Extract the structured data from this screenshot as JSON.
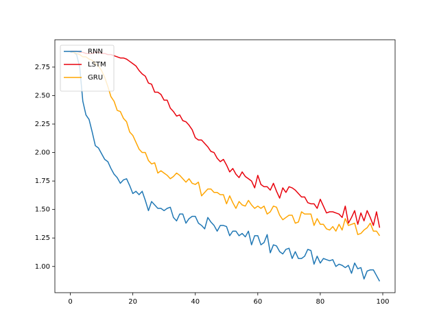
{
  "chart_data": {
    "type": "line",
    "x": [
      0,
      1,
      2,
      3,
      4,
      5,
      6,
      7,
      8,
      9,
      10,
      11,
      12,
      13,
      14,
      15,
      16,
      17,
      18,
      19,
      20,
      21,
      22,
      23,
      24,
      25,
      26,
      27,
      28,
      29,
      30,
      31,
      32,
      33,
      34,
      35,
      36,
      37,
      38,
      39,
      40,
      41,
      42,
      43,
      44,
      45,
      46,
      47,
      48,
      49,
      50,
      51,
      52,
      53,
      54,
      55,
      56,
      57,
      58,
      59,
      60,
      61,
      62,
      63,
      64,
      65,
      66,
      67,
      68,
      69,
      70,
      71,
      72,
      73,
      74,
      75,
      76,
      77,
      78,
      79,
      80,
      81,
      82,
      83,
      84,
      85,
      86,
      87,
      88,
      89,
      90,
      91,
      92,
      93,
      94,
      95,
      96,
      97,
      98,
      99
    ],
    "series": [
      {
        "name": "RNN",
        "color": "#1f77b4",
        "values": [
          2.88,
          2.88,
          2.86,
          2.75,
          2.45,
          2.33,
          2.29,
          2.18,
          2.06,
          2.04,
          1.99,
          1.94,
          1.92,
          1.86,
          1.81,
          1.78,
          1.73,
          1.76,
          1.77,
          1.71,
          1.64,
          1.66,
          1.63,
          1.66,
          1.58,
          1.49,
          1.57,
          1.54,
          1.51,
          1.51,
          1.49,
          1.51,
          1.52,
          1.43,
          1.4,
          1.46,
          1.46,
          1.38,
          1.42,
          1.44,
          1.44,
          1.38,
          1.36,
          1.33,
          1.43,
          1.39,
          1.36,
          1.31,
          1.36,
          1.36,
          1.35,
          1.27,
          1.31,
          1.31,
          1.27,
          1.29,
          1.26,
          1.31,
          1.19,
          1.27,
          1.27,
          1.19,
          1.21,
          1.28,
          1.12,
          1.19,
          1.18,
          1.13,
          1.11,
          1.15,
          1.16,
          1.07,
          1.13,
          1.07,
          1.07,
          1.09,
          1.15,
          1.14,
          1.02,
          1.09,
          1.03,
          1.07,
          1.06,
          1.05,
          1.06,
          1.0,
          1.02,
          1.01,
          0.99,
          1.01,
          0.94,
          1.03,
          0.98,
          0.99,
          0.89,
          0.96,
          0.97,
          0.97,
          0.92,
          0.87
        ]
      },
      {
        "name": "LSTM",
        "color": "#e8000b",
        "values": [
          2.89,
          2.89,
          2.89,
          2.88,
          2.88,
          2.87,
          2.87,
          2.87,
          2.88,
          2.88,
          2.87,
          2.87,
          2.86,
          2.86,
          2.85,
          2.84,
          2.83,
          2.83,
          2.82,
          2.8,
          2.78,
          2.76,
          2.72,
          2.69,
          2.67,
          2.61,
          2.6,
          2.53,
          2.53,
          2.51,
          2.46,
          2.46,
          2.39,
          2.36,
          2.32,
          2.33,
          2.28,
          2.27,
          2.24,
          2.2,
          2.13,
          2.11,
          2.11,
          2.08,
          2.05,
          2.01,
          2.0,
          1.95,
          1.92,
          1.94,
          1.89,
          1.83,
          1.86,
          1.81,
          1.78,
          1.83,
          1.79,
          1.77,
          1.75,
          1.69,
          1.8,
          1.72,
          1.7,
          1.7,
          1.67,
          1.73,
          1.66,
          1.6,
          1.69,
          1.65,
          1.7,
          1.69,
          1.67,
          1.64,
          1.61,
          1.61,
          1.56,
          1.55,
          1.55,
          1.51,
          1.59,
          1.53,
          1.47,
          1.48,
          1.48,
          1.47,
          1.46,
          1.43,
          1.53,
          1.38,
          1.43,
          1.49,
          1.37,
          1.47,
          1.4,
          1.49,
          1.43,
          1.36,
          1.48,
          1.34
        ]
      },
      {
        "name": "GRU",
        "color": "#ffa500",
        "values": [
          2.89,
          2.88,
          2.87,
          2.86,
          2.84,
          2.84,
          2.82,
          2.81,
          2.78,
          2.76,
          2.72,
          2.66,
          2.58,
          2.49,
          2.45,
          2.37,
          2.36,
          2.3,
          2.27,
          2.18,
          2.15,
          2.09,
          2.03,
          2.0,
          2.0,
          1.93,
          1.9,
          1.91,
          1.82,
          1.84,
          1.82,
          1.8,
          1.77,
          1.79,
          1.82,
          1.8,
          1.77,
          1.74,
          1.77,
          1.73,
          1.72,
          1.74,
          1.62,
          1.65,
          1.68,
          1.68,
          1.65,
          1.65,
          1.63,
          1.63,
          1.55,
          1.62,
          1.56,
          1.51,
          1.57,
          1.54,
          1.53,
          1.58,
          1.54,
          1.51,
          1.53,
          1.51,
          1.53,
          1.46,
          1.48,
          1.53,
          1.52,
          1.45,
          1.41,
          1.43,
          1.45,
          1.45,
          1.38,
          1.39,
          1.48,
          1.46,
          1.46,
          1.46,
          1.36,
          1.42,
          1.37,
          1.37,
          1.33,
          1.32,
          1.35,
          1.31,
          1.37,
          1.32,
          1.42,
          1.36,
          1.37,
          1.38,
          1.28,
          1.29,
          1.32,
          1.34,
          1.38,
          1.31,
          1.31,
          1.27
        ]
      }
    ],
    "xlim": [
      -4.95,
      103.95
    ],
    "ylim": [
      0.77,
      2.99
    ],
    "xticks": [
      0,
      20,
      40,
      60,
      80,
      100
    ],
    "yticks": [
      {
        "value": 1.0,
        "label": "1.00"
      },
      {
        "value": 1.25,
        "label": "1.25"
      },
      {
        "value": 1.5,
        "label": "1.50"
      },
      {
        "value": 1.75,
        "label": "1.75"
      },
      {
        "value": 2.0,
        "label": "2.00"
      },
      {
        "value": 2.25,
        "label": "2.25"
      },
      {
        "value": 2.5,
        "label": "2.50"
      },
      {
        "value": 2.75,
        "label": "2.75"
      }
    ],
    "legend": "upper left",
    "grid": false
  }
}
